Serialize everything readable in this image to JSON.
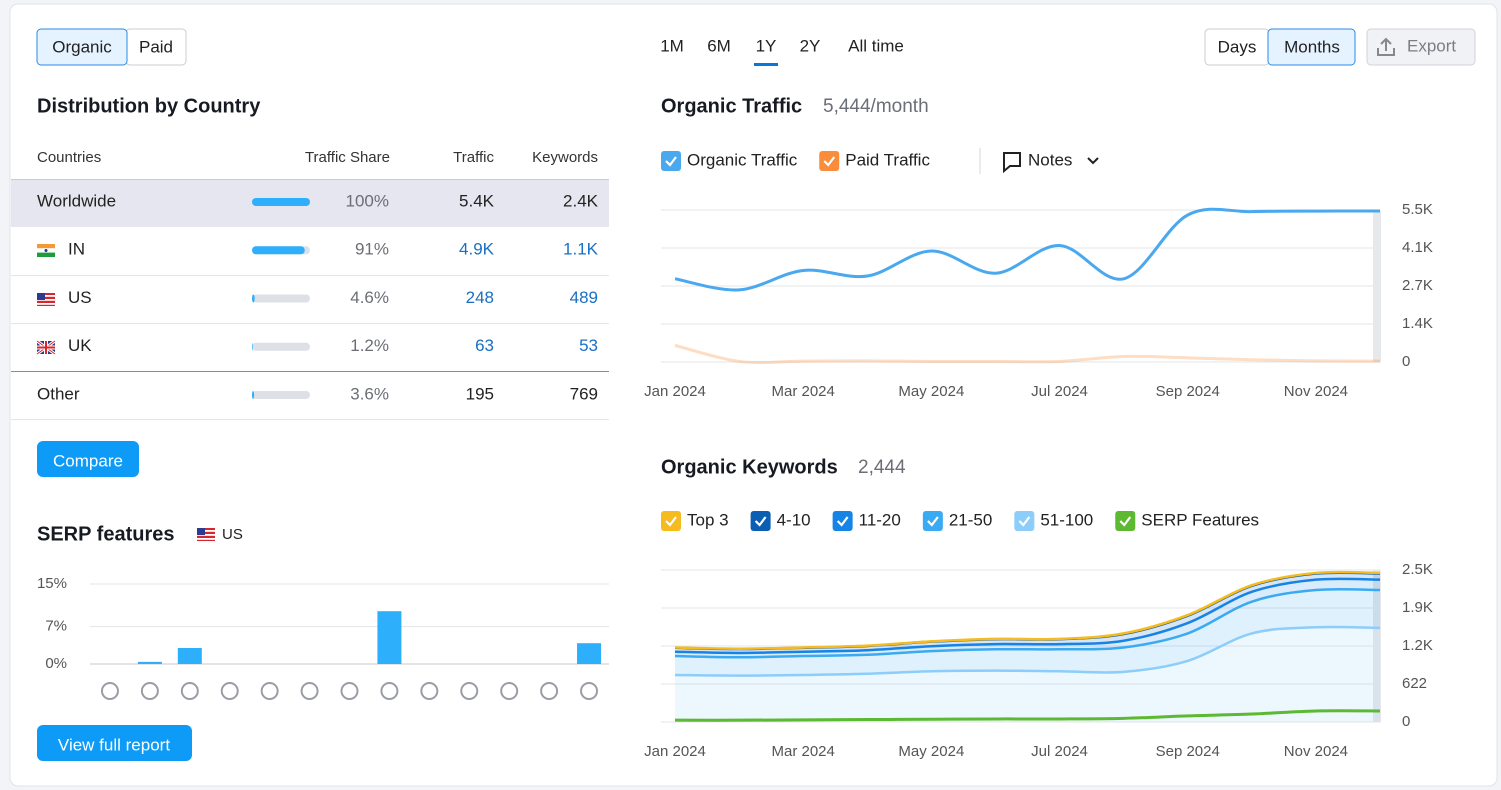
{
  "tabs": [
    "Organic",
    "Paid"
  ],
  "time_ranges": [
    "1M",
    "6M",
    "1Y",
    "2Y",
    "All time"
  ],
  "granularity": [
    "Days",
    "Months"
  ],
  "export": "Export",
  "distribution": {
    "title": "Distribution by Country",
    "columns": [
      "Countries",
      "Traffic Share",
      "Traffic",
      "Keywords"
    ],
    "rows": [
      {
        "country": "Worldwide",
        "traffic_share": 100,
        "traffic_share_label": "100%",
        "traffic": "5.4K",
        "keywords": "2.4K",
        "linked": false
      },
      {
        "country": "IN",
        "traffic_share": 91,
        "traffic_share_label": "91%",
        "traffic": "4.9K",
        "keywords": "1.1K",
        "linked": true
      },
      {
        "country": "US",
        "traffic_share": 4.6,
        "traffic_share_label": "4.6%",
        "traffic": "248",
        "keywords": "489",
        "linked": true
      },
      {
        "country": "UK",
        "traffic_share": 1.2,
        "traffic_share_label": "1.2%",
        "traffic": "63",
        "keywords": "53",
        "linked": true
      },
      {
        "country": "Other",
        "traffic_share": 3.6,
        "traffic_share_label": "3.6%",
        "traffic": "195",
        "keywords": "769",
        "linked": false
      }
    ],
    "bar_color": "#2eaffb"
  },
  "compare": "Compare",
  "serp": {
    "title": "SERP features",
    "country": "US",
    "chart": {
      "type": "bar",
      "categories": [
        null,
        null,
        null,
        null,
        null,
        null,
        null,
        null,
        null,
        null,
        null,
        null,
        null
      ],
      "values": [
        0,
        0.4,
        3,
        0,
        0,
        0,
        0,
        9.9,
        0,
        0,
        0,
        0,
        3.9
      ],
      "color": "#2eaffb",
      "ylim": [
        0,
        15
      ],
      "yticks": [
        {
          "value": 0,
          "label": "0%"
        },
        {
          "value": 7,
          "label": "7%"
        },
        {
          "value": 15,
          "label": "15%"
        }
      ],
      "grid": true
    }
  },
  "view_full_report": "View full report",
  "organic_traffic": {
    "title": "Organic Traffic",
    "value": "5,444",
    "unit": "/month",
    "notes": "Notes",
    "chart": {
      "type": "line",
      "categories": [
        "Jan 2024",
        null,
        "Mar 2024",
        null,
        "May 2024",
        null,
        "Jul 2024",
        null,
        "Sep 2024",
        null,
        "Nov 2024",
        null
      ],
      "series": [
        {
          "name": "Organic Traffic",
          "color": "#4aa8ee",
          "values": [
            3000,
            2600,
            3300,
            3100,
            4000,
            3200,
            4200,
            3000,
            5300,
            5420,
            5440,
            5444
          ]
        },
        {
          "name": "Paid Traffic",
          "color": "#f98d3c",
          "values": [
            600,
            20,
            30,
            40,
            20,
            20,
            20,
            200,
            150,
            80,
            40,
            30
          ]
        }
      ],
      "ylim": [
        0,
        5480
      ],
      "yticks": [
        0,
        {
          "value": 1370,
          "label": "1.4K"
        },
        {
          "value": 2740,
          "label": "2.7K"
        },
        {
          "value": 4110,
          "label": "4.1K"
        },
        {
          "value": 5480,
          "label": "5.5K"
        }
      ],
      "grid": true
    }
  },
  "organic_keywords": {
    "title": "Organic Keywords",
    "value": "2,444",
    "chart": {
      "type": "area",
      "stacked": true,
      "categories": [
        "Jan 2024",
        null,
        "Mar 2024",
        null,
        "May 2024",
        null,
        "Jul 2024",
        null,
        "Sep 2024",
        null,
        "Nov 2024",
        null
      ],
      "series": [
        {
          "name": "Top 3",
          "color": "#f6bb1e",
          "values": [
            5,
            5,
            5,
            5,
            5,
            5,
            5,
            10,
            10,
            10,
            10,
            10
          ]
        },
        {
          "name": "4-10",
          "color": "#0a5fb4",
          "values": [
            65,
            65,
            65,
            70,
            75,
            80,
            80,
            110,
            120,
            100,
            100,
            100
          ]
        },
        {
          "name": "11-20",
          "color": "#1683e6",
          "values": [
            70,
            70,
            70,
            75,
            80,
            85,
            85,
            110,
            170,
            160,
            170,
            170
          ]
        },
        {
          "name": "21-50",
          "color": "#3aaaf2",
          "values": [
            310,
            300,
            310,
            310,
            330,
            350,
            360,
            400,
            450,
            520,
            610,
            620
          ]
        },
        {
          "name": "51-100",
          "color": "#8ccdf9",
          "values": [
            770,
            760,
            770,
            790,
            830,
            840,
            830,
            820,
            1000,
            1450,
            1550,
            1540
          ]
        },
        {
          "name": "SERP Features",
          "color": "#5db832",
          "type": "line",
          "values": [
            30,
            30,
            35,
            40,
            45,
            50,
            50,
            60,
            100,
            130,
            180,
            180
          ]
        }
      ],
      "ylim": [
        0,
        2488
      ],
      "yticks": [
        0,
        622,
        {
          "value": 1244,
          "label": "1.2K"
        },
        {
          "value": 1866,
          "label": "1.9K"
        },
        {
          "value": 2488,
          "label": "2.5K"
        }
      ],
      "grid": true
    }
  }
}
